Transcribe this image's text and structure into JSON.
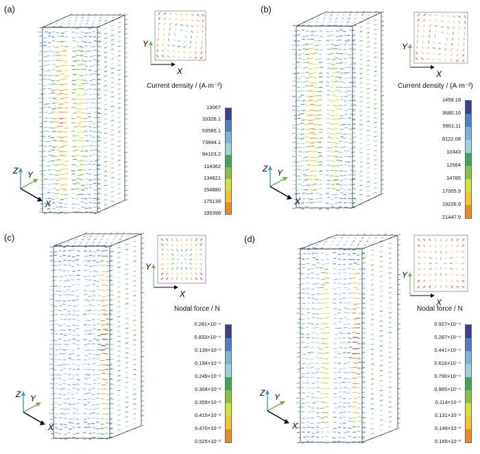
{
  "panels": [
    {
      "id": "a",
      "label": "(a)",
      "colorbar_title": "Current density / (A·m⁻²)",
      "values": [
        "13067",
        "33326.1",
        "53585.1",
        "73844.1",
        "94103.2",
        "114362",
        "134621",
        "154880",
        "175139",
        "195398"
      ],
      "axes": {
        "x": "X",
        "y": "Y",
        "z": "Z"
      }
    },
    {
      "id": "b",
      "label": "(b)",
      "colorbar_title": "Current density / (A·m⁻²)",
      "values": [
        "1459.18",
        "3680.16",
        "5901.11",
        "8122.08",
        "10343",
        "12564",
        "14785",
        "17005.9",
        "19226.9",
        "21447.9"
      ],
      "axes": {
        "x": "X",
        "y": "Y",
        "z": "Z"
      }
    },
    {
      "id": "c",
      "label": "(c)",
      "colorbar_title": "Nodal force / N",
      "values": [
        "0.281×10⁻⁴",
        "0.833×10⁻⁴",
        "0.139×10⁻²",
        "0.194×10⁻²",
        "0.249×10⁻²",
        "0.304×10⁻²",
        "0.359×10⁻²",
        "0.415×10⁻²",
        "0.470×10⁻²",
        "0.525×10⁻²"
      ],
      "axes": {
        "x": "X",
        "y": "Y",
        "z": "Z"
      }
    },
    {
      "id": "d",
      "label": "(d)",
      "colorbar_title": "Nodal force / N",
      "values": [
        "0.927×10⁻⁸",
        "0.267×10⁻⁴",
        "0.441×10⁻⁴",
        "0.616×10⁻⁴",
        "0.790×10⁻⁴",
        "0.965×10⁻⁴",
        "0.114×10⁻³",
        "0.131×10⁻³",
        "0.149×10⁻³",
        "0.165×10⁻³"
      ],
      "axes": {
        "x": "X",
        "y": "Y",
        "z": "Z"
      }
    }
  ],
  "colorscale": [
    "#3a3f98",
    "#4f7fc8",
    "#77b3dc",
    "#9fd2d6",
    "#3aa856",
    "#86c440",
    "#d8e03a",
    "#f2c030",
    "#ef8a22",
    "#d62127"
  ]
}
